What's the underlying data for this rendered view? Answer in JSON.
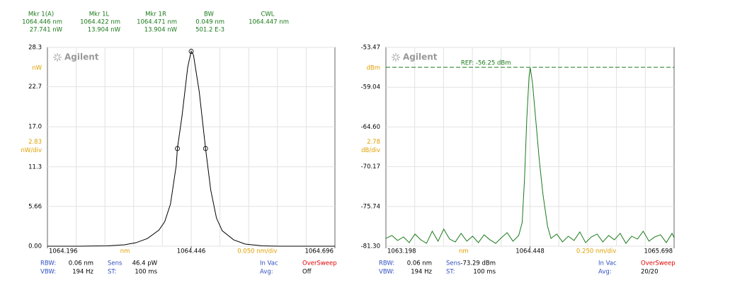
{
  "header": {
    "columns": [
      [
        "Mkr 1(A)",
        "1064.446 nm",
        "27.741 nW"
      ],
      [
        "Mkr 1L",
        "1064.422 nm",
        "13.904 nW"
      ],
      [
        "Mkr 1R",
        "1064.471 nm",
        "13.904 nW"
      ],
      [
        "BW",
        "0.049 nm",
        "501.2 E-3"
      ],
      [
        "CWL",
        "1064.447 nm"
      ]
    ]
  },
  "chart_data": [
    {
      "type": "line",
      "logo": "Agilent",
      "color": "#000000",
      "x": [
        1064.196,
        1064.25,
        1064.3,
        1064.33,
        1064.35,
        1064.37,
        1064.39,
        1064.4,
        1064.41,
        1064.42,
        1064.422,
        1064.43,
        1064.44,
        1064.446,
        1064.45,
        1064.46,
        1064.471,
        1064.48,
        1064.49,
        1064.5,
        1064.52,
        1064.54,
        1064.57,
        1064.6,
        1064.696
      ],
      "values": [
        0,
        0,
        0.05,
        0.2,
        0.5,
        1.1,
        2.3,
        3.5,
        6.0,
        11.5,
        13.904,
        18.5,
        25.5,
        27.741,
        27.2,
        22.0,
        13.904,
        8.0,
        4.0,
        2.2,
        0.9,
        0.3,
        0.05,
        0,
        0
      ],
      "markers": [
        {
          "x": 1064.446,
          "y": 27.741
        },
        {
          "x": 1064.422,
          "y": 13.904
        },
        {
          "x": 1064.471,
          "y": 13.904
        }
      ],
      "xlim": [
        1064.196,
        1064.696
      ],
      "xticks": [
        1064.196,
        1064.446,
        1064.696
      ],
      "ylim": [
        0,
        28.3
      ],
      "yticks": [
        {
          "value": 0,
          "label": "0.00"
        },
        5.66,
        11.3,
        {
          "value": 17,
          "label": "17.0"
        },
        22.7,
        28.3
      ],
      "x_divisions": 10,
      "y_unit": "nW",
      "y_div": "2.83",
      "y_div_unit": "nW/div",
      "x_unit": "nm",
      "x_div": "0.050 nm/div",
      "status": [
        [
          "RBW:",
          "0.06 nm",
          "Sens",
          "46.4 pW",
          "In Vac",
          "OverSweep"
        ],
        [
          "VBW:",
          "194 Hz",
          "ST:",
          "100 ms",
          "Avg:",
          "Off"
        ]
      ]
    },
    {
      "type": "line",
      "logo": "Agilent",
      "color": "#1a7a1a",
      "x": [
        1063.198,
        1063.25,
        1063.3,
        1063.35,
        1063.4,
        1063.45,
        1063.5,
        1063.55,
        1063.6,
        1063.65,
        1063.7,
        1063.75,
        1063.8,
        1063.85,
        1063.9,
        1063.95,
        1064.0,
        1064.05,
        1064.1,
        1064.15,
        1064.2,
        1064.25,
        1064.3,
        1064.35,
        1064.38,
        1064.4,
        1064.42,
        1064.44,
        1064.45,
        1064.47,
        1064.5,
        1064.53,
        1064.56,
        1064.6,
        1064.63,
        1064.68,
        1064.73,
        1064.78,
        1064.83,
        1064.88,
        1064.93,
        1064.98,
        1065.03,
        1065.08,
        1065.13,
        1065.18,
        1065.23,
        1065.28,
        1065.33,
        1065.38,
        1065.43,
        1065.48,
        1065.53,
        1065.58,
        1065.63,
        1065.68,
        1065.698
      ],
      "values": [
        -80.2,
        -79.8,
        -80.5,
        -80.0,
        -80.8,
        -79.6,
        -80.4,
        -80.9,
        -79.2,
        -80.6,
        -78.9,
        -80.3,
        -80.7,
        -79.5,
        -80.6,
        -79.9,
        -80.8,
        -79.7,
        -80.4,
        -80.9,
        -80.1,
        -79.4,
        -80.6,
        -79.8,
        -78.0,
        -72.0,
        -63.5,
        -57.5,
        -56.3,
        -58.5,
        -64.0,
        -69.5,
        -74.0,
        -78.5,
        -80.2,
        -79.6,
        -80.7,
        -79.9,
        -80.5,
        -79.3,
        -80.8,
        -80.0,
        -79.6,
        -80.7,
        -79.8,
        -80.4,
        -79.5,
        -80.9,
        -79.9,
        -80.3,
        -79.2,
        -80.6,
        -80.0,
        -79.7,
        -80.8,
        -79.5,
        -80.1
      ],
      "reference": {
        "value": -56.25,
        "label": "REF: -56.25 dBm"
      },
      "xlim": [
        1063.198,
        1065.698
      ],
      "xticks": [
        1063.198,
        1064.448,
        1065.698
      ],
      "ylim": [
        -81.3,
        -53.47
      ],
      "yticks": [
        -53.47,
        -59.04,
        {
          "value": -64.6,
          "label": "-64.60"
        },
        -70.17,
        -75.74,
        {
          "value": -81.3,
          "label": "-81.30"
        }
      ],
      "x_divisions": 10,
      "y_unit": "dBm",
      "y_div": "2.78",
      "y_div_unit": "dB/div",
      "x_unit": "nm",
      "x_div": "0.250 nm/div",
      "status": [
        [
          "RBW:",
          "0.06 nm",
          "Sens",
          "-73.29 dBm",
          "In Vac",
          "OverSweep"
        ],
        [
          "VBW:",
          "194 Hz",
          "ST:",
          "100 ms",
          "Avg:",
          "20/20"
        ]
      ]
    }
  ]
}
